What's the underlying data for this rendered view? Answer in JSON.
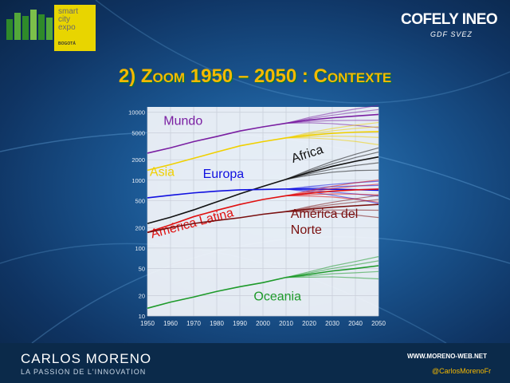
{
  "header": {
    "logo_line1": "smart",
    "logo_line2": "city",
    "logo_line3": "expo",
    "logo_city": "BOGOTÁ",
    "brand": "COFELY INEO",
    "brand_sub": "GDF SVEZ"
  },
  "slide": {
    "title": "2) Zoom 1950 – 2050 : Contexte"
  },
  "footer": {
    "name": "CARLOS MORENO",
    "tagline": "LA PASSION DE L'INNOVATION",
    "website": "WWW.MORENO-WEB.NET",
    "twitter": "@CarlosMorenoFr"
  },
  "chart_data": {
    "type": "line",
    "yscale": "log",
    "ylim": [
      10,
      12000
    ],
    "xlim": [
      1950,
      2050
    ],
    "x_ticks": [
      1950,
      1960,
      1970,
      1980,
      1990,
      2000,
      2010,
      2020,
      2030,
      2040,
      2050
    ],
    "y_ticks": [
      10,
      20,
      50,
      100,
      200,
      500,
      1000,
      2000,
      5000,
      10000
    ],
    "x": [
      1950,
      1960,
      1970,
      1980,
      1990,
      2000,
      2010,
      2020,
      2030,
      2040,
      2050
    ],
    "series": [
      {
        "name": "Mundo",
        "color": "#7a1fa2",
        "label_x": 1957,
        "label_y": 6500,
        "values": [
          2500,
          3000,
          3700,
          4400,
          5300,
          6100,
          6900,
          7700,
          8300,
          8800,
          9300
        ]
      },
      {
        "name": "Asia",
        "color": "#f0d000",
        "label_x": 1951,
        "label_y": 1150,
        "values": [
          1400,
          1700,
          2100,
          2600,
          3200,
          3700,
          4200,
          4600,
          4900,
          5100,
          5200
        ]
      },
      {
        "name": "Africa",
        "color": "#111111",
        "label_x": 2013,
        "label_y": 1800,
        "values": [
          230,
          285,
          365,
          480,
          630,
          810,
          1030,
          1300,
          1600,
          1900,
          2200
        ]
      },
      {
        "name": "Europa",
        "color": "#1010e0",
        "label_x": 1974,
        "label_y": 1080,
        "values": [
          550,
          600,
          650,
          690,
          720,
          730,
          740,
          740,
          735,
          725,
          710
        ]
      },
      {
        "name": "América Latina",
        "color": "#e01010",
        "label_x": 1952,
        "label_y": 140,
        "values": [
          170,
          220,
          290,
          360,
          440,
          520,
          590,
          640,
          690,
          720,
          740
        ]
      },
      {
        "name": "América del\nNorte",
        "color": "#7a1010",
        "label_x": 2012,
        "label_y": 280,
        "values": [
          170,
          200,
          230,
          255,
          280,
          315,
          345,
          375,
          400,
          420,
          440
        ]
      },
      {
        "name": "Oceania",
        "color": "#1e9a2a",
        "label_x": 1996,
        "label_y": 17,
        "values": [
          13,
          16,
          19,
          23,
          27,
          31,
          37,
          41,
          46,
          50,
          55
        ]
      }
    ]
  }
}
